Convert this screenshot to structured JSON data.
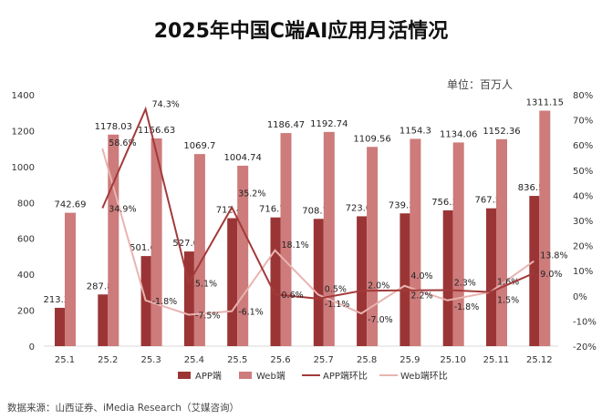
{
  "chart_data": {
    "type": "bar",
    "title": "2025年中国C端AI应用月活情况",
    "unit": "单位：百万人",
    "source": "数据来源：山西证券、iMedia Research（艾媒咨询）",
    "categories": [
      "25.1",
      "25.2",
      "25.3",
      "25.4",
      "25.5",
      "25.6",
      "25.7",
      "25.8",
      "25.9",
      "25.10",
      "25.11",
      "25.12"
    ],
    "series": [
      {
        "name": "APP端",
        "type": "bar",
        "axis": "left",
        "color": "#9b3535",
        "values": [
          213.36,
          287.85,
          501.62,
          527.05,
          712.48,
          716.74,
          708.79,
          723.07,
          739.31,
          756.34,
          767.51,
          836.59
        ],
        "labels": [
          "213.36",
          "287.85",
          "501.62",
          "527.05",
          "712.48",
          "716.74",
          "708.79",
          "723.07",
          "739.31",
          "756.34",
          "767.51",
          "836.59"
        ]
      },
      {
        "name": "Web端",
        "type": "bar",
        "axis": "right-of-pair",
        "color": "#cd7b7b",
        "values": [
          742.69,
          1178.03,
          1156.63,
          1069.7,
          1004.74,
          1186.47,
          1192.74,
          1109.56,
          1154.3,
          1134.06,
          1152.36,
          1311.15
        ],
        "labels": [
          "742.69",
          "1178.03",
          "1156.63",
          "1069.7",
          "1004.74",
          "1186.47",
          "1192.74",
          "1109.56",
          "1154.3",
          "1134.06",
          "1152.36",
          "1311.15"
        ]
      },
      {
        "name": "APP端环比",
        "type": "line",
        "axis": "right",
        "color": "#a33a3a",
        "values": [
          null,
          34.9,
          74.3,
          5.1,
          35.2,
          0.6,
          -1.1,
          2.0,
          2.2,
          2.3,
          1.5,
          9.0
        ],
        "labels": [
          "",
          "34.9%",
          "74.3%",
          "5.1%",
          "35.2%",
          "0.6%",
          "-1.1%",
          "2.0%",
          "2.2%",
          "2.3%",
          "1.5%",
          "9.0%"
        ]
      },
      {
        "name": "Web端环比",
        "type": "line",
        "axis": "right",
        "color": "#e8b4b0",
        "values": [
          null,
          58.6,
          -1.8,
          -7.5,
          -6.1,
          18.1,
          0.5,
          -7.0,
          4.0,
          -1.8,
          1.6,
          13.8
        ],
        "labels": [
          "",
          "58.6%",
          "-1.8%",
          "-7.5%",
          "-6.1%",
          "18.1%",
          "0.5%",
          "-7.0%",
          "4.0%",
          "-1.8%",
          "1.6%",
          "13.8%"
        ]
      }
    ],
    "ylim_left": [
      0,
      1400
    ],
    "yticks_left": [
      "0",
      "200",
      "400",
      "600",
      "800",
      "1000",
      "1200",
      "1400"
    ],
    "ylim_right": [
      -20,
      80
    ],
    "yticks_right": [
      "-20%",
      "-10%",
      "0%",
      "10%",
      "20%",
      "30%",
      "40%",
      "50%",
      "60%",
      "70%",
      "80%"
    ],
    "grid": false,
    "legend": "bottom"
  }
}
